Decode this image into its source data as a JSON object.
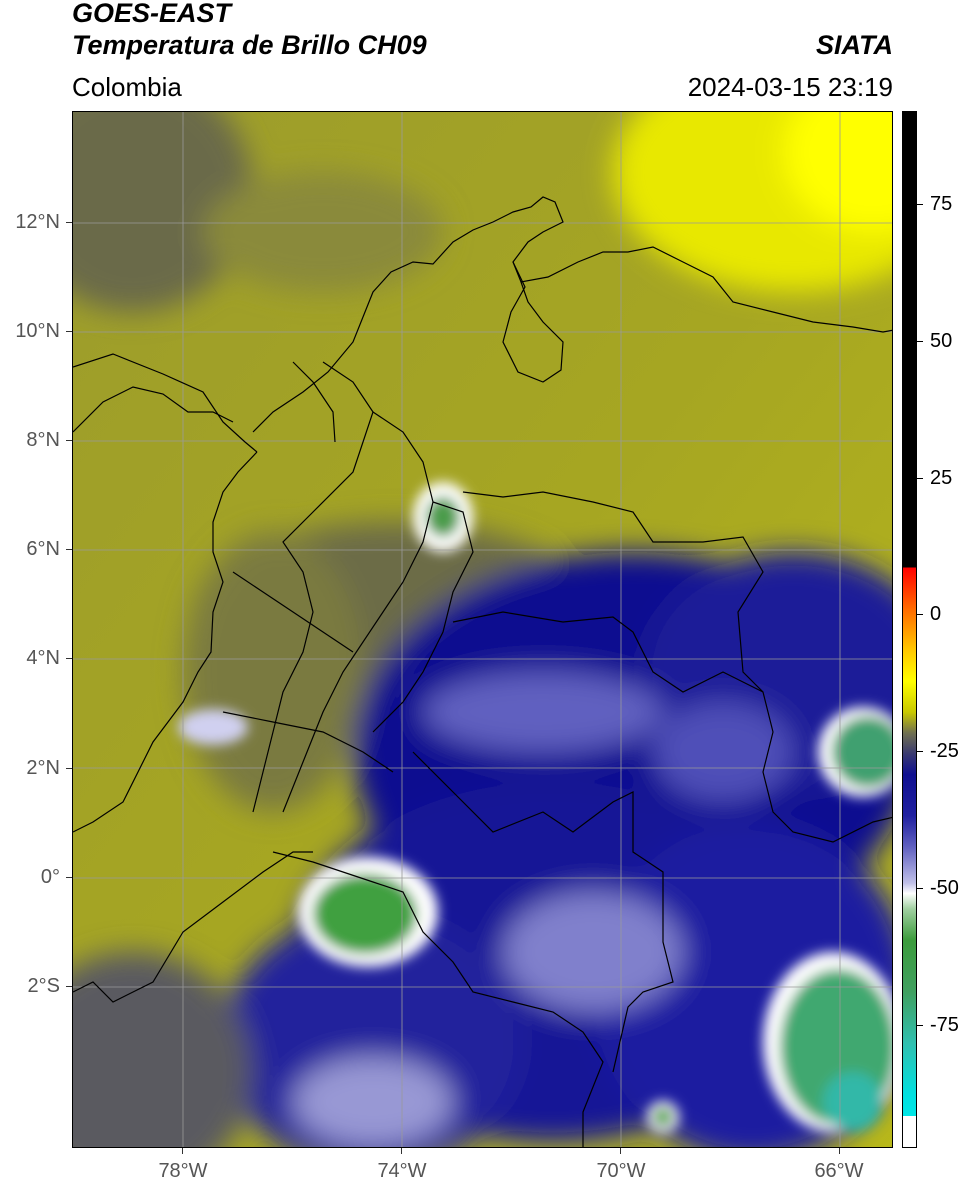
{
  "header": {
    "satellite": "GOES-EAST",
    "product": "Temperatura de Brillo CH09",
    "organization": "SIATA",
    "region": "Colombia",
    "timestamp": "2024-03-15 23:19"
  },
  "map": {
    "lat_labels": [
      "12°N",
      "10°N",
      "8°N",
      "6°N",
      "4°N",
      "2°N",
      "0°",
      "2°S"
    ],
    "lon_labels": [
      "78°W",
      "74°W",
      "70°W",
      "66°W"
    ]
  },
  "colorbar": {
    "ticks": [
      "75",
      "50",
      "25",
      "0",
      "-25",
      "-50",
      "-75"
    ],
    "colors": [
      "#000000",
      "#ff0000",
      "#ffff00",
      "#101090",
      "#ffffff",
      "#3c9c3c",
      "#00e0e0"
    ]
  }
}
